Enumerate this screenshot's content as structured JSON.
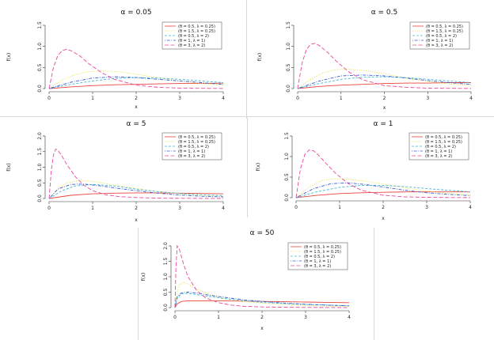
{
  "chart_data": [
    {
      "type": "line",
      "title": "α = 0.05",
      "xlabel": "x",
      "ylabel": "f(x)",
      "xlim": [
        0,
        4
      ],
      "ylim": [
        0,
        1.5
      ],
      "xticks": [
        "0",
        "1",
        "2",
        "3",
        "4"
      ],
      "yticks": [
        "0.0",
        "0.5",
        "1.0",
        "1.5"
      ],
      "legend": "top-right",
      "series": [
        {
          "name": "(θ = 0.5, λ = 0.25)",
          "color": "#e8453c",
          "dash": "solid",
          "x": [
            0,
            0.5,
            1,
            1.5,
            2,
            2.5,
            3,
            3.5,
            4
          ],
          "y": [
            0,
            0.04,
            0.07,
            0.09,
            0.1,
            0.11,
            0.12,
            0.12,
            0.13
          ]
        },
        {
          "name": "(θ = 1.5, λ = 0.25)",
          "color": "#e6e04a",
          "dash": "dotted",
          "x": [
            0,
            0.3,
            0.6,
            0.9,
            1.2,
            1.6,
            2,
            2.5,
            3,
            3.5,
            4
          ],
          "y": [
            0,
            0.2,
            0.33,
            0.4,
            0.42,
            0.4,
            0.34,
            0.26,
            0.18,
            0.12,
            0.08
          ]
        },
        {
          "name": "(θ = 0.5, λ = 2)",
          "color": "#44b8d8",
          "dash": "dashed",
          "x": [
            0,
            0.5,
            1,
            1.5,
            2,
            2.5,
            3,
            3.5,
            4
          ],
          "y": [
            0,
            0.1,
            0.18,
            0.24,
            0.26,
            0.25,
            0.22,
            0.18,
            0.14
          ]
        },
        {
          "name": "(θ = 1, λ = 1)",
          "color": "#3a5fd0",
          "dash": "dotdash",
          "x": [
            0,
            0.5,
            1,
            1.5,
            2,
            2.5,
            3,
            3.5,
            4
          ],
          "y": [
            0,
            0.15,
            0.25,
            0.28,
            0.26,
            0.22,
            0.18,
            0.14,
            0.1
          ]
        },
        {
          "name": "(θ = 3, λ = 2)",
          "color": "#e8479c",
          "dash": "longdash",
          "x": [
            0,
            0.1,
            0.2,
            0.3,
            0.4,
            0.5,
            0.7,
            0.9,
            1.2,
            1.5,
            2,
            2.5,
            3,
            3.5,
            4
          ],
          "y": [
            0,
            0.5,
            0.78,
            0.9,
            0.93,
            0.9,
            0.78,
            0.6,
            0.38,
            0.22,
            0.08,
            0.03,
            0.01,
            0.005,
            0.002
          ]
        }
      ]
    },
    {
      "type": "line",
      "title": "α = 0.5",
      "xlabel": "x",
      "ylabel": "f(x)",
      "xlim": [
        0,
        4
      ],
      "ylim": [
        0,
        1.5
      ],
      "xticks": [
        "0",
        "1",
        "2",
        "3",
        "4"
      ],
      "yticks": [
        "0.0",
        "0.5",
        "1.0",
        "1.5"
      ],
      "legend": "top-right",
      "series": [
        {
          "name": "(θ = 0.5, λ = 0.25)",
          "color": "#e8453c",
          "dash": "solid",
          "x": [
            0,
            0.5,
            1,
            1.5,
            2,
            2.5,
            3,
            3.5,
            4
          ],
          "y": [
            0,
            0.05,
            0.08,
            0.1,
            0.12,
            0.13,
            0.13,
            0.14,
            0.14
          ]
        },
        {
          "name": "(θ = 1.5, λ = 0.25)",
          "color": "#e6e04a",
          "dash": "dotted",
          "x": [
            0,
            0.3,
            0.6,
            0.9,
            1.2,
            1.6,
            2,
            2.5,
            3,
            3.5,
            4
          ],
          "y": [
            0,
            0.22,
            0.38,
            0.45,
            0.46,
            0.42,
            0.35,
            0.25,
            0.17,
            0.11,
            0.07
          ]
        },
        {
          "name": "(θ = 0.5, λ = 2)",
          "color": "#44b8d8",
          "dash": "dashed",
          "x": [
            0,
            0.5,
            1,
            1.5,
            2,
            2.5,
            3,
            3.5,
            4
          ],
          "y": [
            0,
            0.12,
            0.22,
            0.27,
            0.28,
            0.26,
            0.22,
            0.18,
            0.14
          ]
        },
        {
          "name": "(θ = 1, λ = 1)",
          "color": "#3a5fd0",
          "dash": "dotdash",
          "x": [
            0,
            0.5,
            1,
            1.5,
            2,
            2.5,
            3,
            3.5,
            4
          ],
          "y": [
            0,
            0.18,
            0.3,
            0.32,
            0.3,
            0.25,
            0.19,
            0.14,
            0.1
          ]
        },
        {
          "name": "(θ = 3, λ = 2)",
          "color": "#e8479c",
          "dash": "longdash",
          "x": [
            0,
            0.1,
            0.2,
            0.3,
            0.4,
            0.5,
            0.7,
            0.9,
            1.2,
            1.5,
            2,
            2.5,
            3,
            3.5,
            4
          ],
          "y": [
            0,
            0.6,
            0.92,
            1.05,
            1.07,
            1.02,
            0.85,
            0.64,
            0.38,
            0.21,
            0.07,
            0.03,
            0.01,
            0.005,
            0.002
          ]
        }
      ]
    },
    {
      "type": "line",
      "title": "α = 5",
      "xlabel": "x",
      "ylabel": "f(x)",
      "xlim": [
        0,
        4
      ],
      "ylim": [
        0,
        2.0
      ],
      "xticks": [
        "0",
        "1",
        "2",
        "3",
        "4"
      ],
      "yticks": [
        "0.0",
        "0.5",
        "1.0",
        "1.5",
        "2.0"
      ],
      "legend": "top-right",
      "series": [
        {
          "name": "(θ = 0.5, λ = 0.25)",
          "color": "#e8453c",
          "dash": "solid",
          "x": [
            0,
            0.5,
            1,
            1.5,
            2,
            2.5,
            3,
            3.5,
            4
          ],
          "y": [
            0,
            0.1,
            0.15,
            0.17,
            0.18,
            0.18,
            0.17,
            0.16,
            0.15
          ]
        },
        {
          "name": "(θ = 1.5, λ = 0.25)",
          "color": "#e6e04a",
          "dash": "dotted",
          "x": [
            0,
            0.2,
            0.4,
            0.7,
            1,
            1.4,
            2,
            2.5,
            3,
            3.5,
            4
          ],
          "y": [
            0,
            0.3,
            0.5,
            0.58,
            0.55,
            0.45,
            0.32,
            0.22,
            0.15,
            0.1,
            0.07
          ]
        },
        {
          "name": "(θ = 0.5, λ = 2)",
          "color": "#44b8d8",
          "dash": "dashed",
          "x": [
            0,
            0.3,
            0.6,
            1,
            1.5,
            2,
            2.5,
            3,
            3.5,
            4
          ],
          "y": [
            0,
            0.25,
            0.4,
            0.45,
            0.4,
            0.3,
            0.22,
            0.16,
            0.12,
            0.09
          ]
        },
        {
          "name": "(θ = 1, λ = 1)",
          "color": "#3a5fd0",
          "dash": "dotdash",
          "x": [
            0,
            0.2,
            0.5,
            0.8,
            1.2,
            1.6,
            2,
            2.5,
            3,
            3.5,
            4
          ],
          "y": [
            0,
            0.3,
            0.45,
            0.46,
            0.4,
            0.32,
            0.25,
            0.17,
            0.11,
            0.07,
            0.05
          ]
        },
        {
          "name": "(θ = 3, λ = 2)",
          "color": "#e8479c",
          "dash": "longdash",
          "x": [
            0,
            0.05,
            0.1,
            0.15,
            0.2,
            0.3,
            0.4,
            0.6,
            0.8,
            1,
            1.3,
            1.6,
            2,
            2.5,
            3,
            4
          ],
          "y": [
            0,
            0.9,
            1.4,
            1.58,
            1.55,
            1.35,
            1.1,
            0.7,
            0.42,
            0.25,
            0.12,
            0.06,
            0.03,
            0.01,
            0.005,
            0.001
          ]
        }
      ]
    },
    {
      "type": "line",
      "title": "α = 1",
      "xlabel": "x",
      "ylabel": "f(x)",
      "xlim": [
        0,
        4
      ],
      "ylim": [
        0,
        1.5
      ],
      "xticks": [
        "0",
        "1",
        "2",
        "3",
        "4"
      ],
      "yticks": [
        "0.0",
        "0.5",
        "1.0",
        "1.5"
      ],
      "legend": "top-right",
      "series": [
        {
          "name": "(θ = 0.5, λ = 0.25)",
          "color": "#e8453c",
          "dash": "solid",
          "x": [
            0,
            0.5,
            1,
            1.5,
            2,
            2.5,
            3,
            3.5,
            4
          ],
          "y": [
            0,
            0.06,
            0.1,
            0.12,
            0.13,
            0.14,
            0.14,
            0.14,
            0.14
          ]
        },
        {
          "name": "(θ = 1.5, λ = 0.25)",
          "color": "#e6e04a",
          "dash": "dotted",
          "x": [
            0,
            0.3,
            0.6,
            0.9,
            1.2,
            1.6,
            2,
            2.5,
            3,
            3.5,
            4
          ],
          "y": [
            0,
            0.26,
            0.42,
            0.46,
            0.45,
            0.4,
            0.33,
            0.24,
            0.16,
            0.1,
            0.07
          ]
        },
        {
          "name": "(θ = 0.5, λ = 2)",
          "color": "#44b8d8",
          "dash": "dashed",
          "x": [
            0,
            0.5,
            1,
            1.5,
            2,
            2.5,
            3,
            3.5,
            4
          ],
          "y": [
            0,
            0.15,
            0.25,
            0.3,
            0.3,
            0.27,
            0.22,
            0.18,
            0.14
          ]
        },
        {
          "name": "(θ = 1, λ = 1)",
          "color": "#3a5fd0",
          "dash": "dotdash",
          "x": [
            0,
            0.4,
            0.8,
            1.2,
            1.6,
            2,
            2.5,
            3,
            3.5,
            4
          ],
          "y": [
            0,
            0.22,
            0.34,
            0.36,
            0.32,
            0.26,
            0.18,
            0.12,
            0.08,
            0.05
          ]
        },
        {
          "name": "(θ = 3, λ = 2)",
          "color": "#e8479c",
          "dash": "longdash",
          "x": [
            0,
            0.1,
            0.2,
            0.3,
            0.4,
            0.5,
            0.7,
            0.9,
            1.2,
            1.5,
            2,
            2.5,
            3,
            3.5,
            4
          ],
          "y": [
            0,
            0.7,
            1.05,
            1.16,
            1.14,
            1.05,
            0.82,
            0.6,
            0.34,
            0.18,
            0.06,
            0.02,
            0.01,
            0.004,
            0.001
          ]
        }
      ]
    },
    {
      "type": "line",
      "title": "α = 50",
      "xlabel": "x",
      "ylabel": "f(x)",
      "xlim": [
        0,
        4
      ],
      "ylim": [
        0,
        2.0
      ],
      "xticks": [
        "0",
        "1",
        "2",
        "3",
        "4"
      ],
      "yticks": [
        "0.0",
        "0.5",
        "1.0",
        "1.5",
        "2.0"
      ],
      "legend": "top-right",
      "series": [
        {
          "name": "(θ = 0.5, λ = 0.25)",
          "color": "#e8453c",
          "dash": "solid",
          "x": [
            0,
            0.05,
            0.15,
            0.3,
            0.5,
            1,
            1.5,
            2,
            2.5,
            3,
            3.5,
            4
          ],
          "y": [
            0,
            0.12,
            0.2,
            0.22,
            0.22,
            0.22,
            0.21,
            0.2,
            0.19,
            0.18,
            0.17,
            0.16
          ]
        },
        {
          "name": "(θ = 1.5, λ = 0.25)",
          "color": "#e6e04a",
          "dash": "dotted",
          "x": [
            0,
            0.05,
            0.1,
            0.2,
            0.35,
            0.5,
            0.8,
            1.2,
            1.6,
            2,
            2.5,
            3,
            3.5,
            4
          ],
          "y": [
            0,
            0.5,
            0.75,
            0.82,
            0.72,
            0.6,
            0.42,
            0.28,
            0.2,
            0.14,
            0.1,
            0.07,
            0.05,
            0.04
          ]
        },
        {
          "name": "(θ = 0.5, λ = 2)",
          "color": "#44b8d8",
          "dash": "dashed",
          "x": [
            0,
            0.05,
            0.15,
            0.3,
            0.5,
            0.8,
            1.2,
            1.6,
            2,
            2.5,
            3,
            3.5,
            4
          ],
          "y": [
            0,
            0.3,
            0.45,
            0.46,
            0.42,
            0.36,
            0.28,
            0.22,
            0.17,
            0.13,
            0.1,
            0.08,
            0.06
          ]
        },
        {
          "name": "(θ = 1, λ = 1)",
          "color": "#3a5fd0",
          "dash": "dotdash",
          "x": [
            0,
            0.05,
            0.15,
            0.3,
            0.5,
            0.8,
            1.2,
            1.6,
            2,
            2.5,
            3,
            3.5,
            4
          ],
          "y": [
            0,
            0.35,
            0.48,
            0.5,
            0.47,
            0.4,
            0.32,
            0.25,
            0.2,
            0.15,
            0.11,
            0.08,
            0.06
          ]
        },
        {
          "name": "(θ = 3, λ = 2)",
          "color": "#e8479c",
          "dash": "longdash",
          "x": [
            0,
            0.02,
            0.05,
            0.1,
            0.2,
            0.3,
            0.5,
            0.7,
            1,
            1.3,
            1.6,
            2,
            2.5,
            3,
            4
          ],
          "y": [
            0,
            1.2,
            2.0,
            1.9,
            1.4,
            1.0,
            0.55,
            0.32,
            0.16,
            0.08,
            0.04,
            0.02,
            0.01,
            0.005,
            0.001
          ]
        }
      ]
    }
  ]
}
